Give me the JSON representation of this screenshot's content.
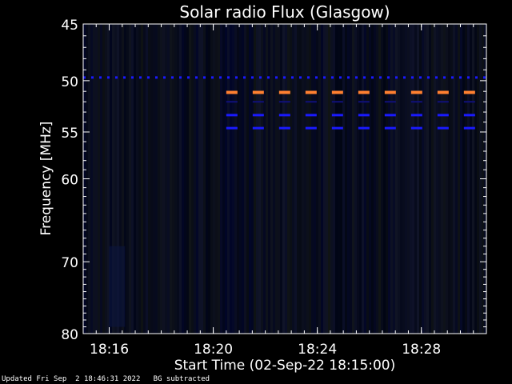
{
  "footer": {
    "updated": "Updated Fri Sep  2 18:46:31 2022",
    "note": "BG subtracted"
  },
  "colors": {
    "background": "#000000",
    "axis": "#ffffff",
    "spectrogram_base": "#05081a",
    "fixed_band_blue": "#1a1aff",
    "fixed_band_orange": "#ff8030"
  },
  "chart_data": {
    "type": "heatmap",
    "title": "Solar radio Flux (Glasgow)",
    "xlabel": "Start Time (02-Sep-22 18:15:00)",
    "ylabel": "Frequency [MHz]",
    "y_scale": "log",
    "y_inverted": true,
    "xlim_minutes": [
      18.25,
      18.508
    ],
    "x_range": [
      "18:15:00",
      "18:30:30"
    ],
    "ylim": [
      45,
      80
    ],
    "x_ticks": [
      "18:16",
      "18:20",
      "18:24",
      "18:28"
    ],
    "x_tick_values": [
      "18:16",
      "18:20",
      "18:24",
      "18:28"
    ],
    "y_ticks": [
      45,
      50,
      55,
      60,
      70,
      80
    ],
    "interference_lines": [
      {
        "frequency": 49.7,
        "start": "18:15:00",
        "end": "18:30:30",
        "color": "blue",
        "style": "dashed"
      },
      {
        "frequency": 51.1,
        "start": "18:20:30",
        "end": "18:30:30",
        "color": "orange",
        "style": "dashed"
      },
      {
        "frequency": 52.0,
        "start": "18:20:30",
        "end": "18:30:30",
        "color": "dark-blue",
        "style": "dashed"
      },
      {
        "frequency": 53.3,
        "start": "18:20:30",
        "end": "18:30:30",
        "color": "blue",
        "style": "dashed"
      },
      {
        "frequency": 54.6,
        "start": "18:20:30",
        "end": "18:30:30",
        "color": "blue",
        "style": "dashed"
      }
    ]
  }
}
